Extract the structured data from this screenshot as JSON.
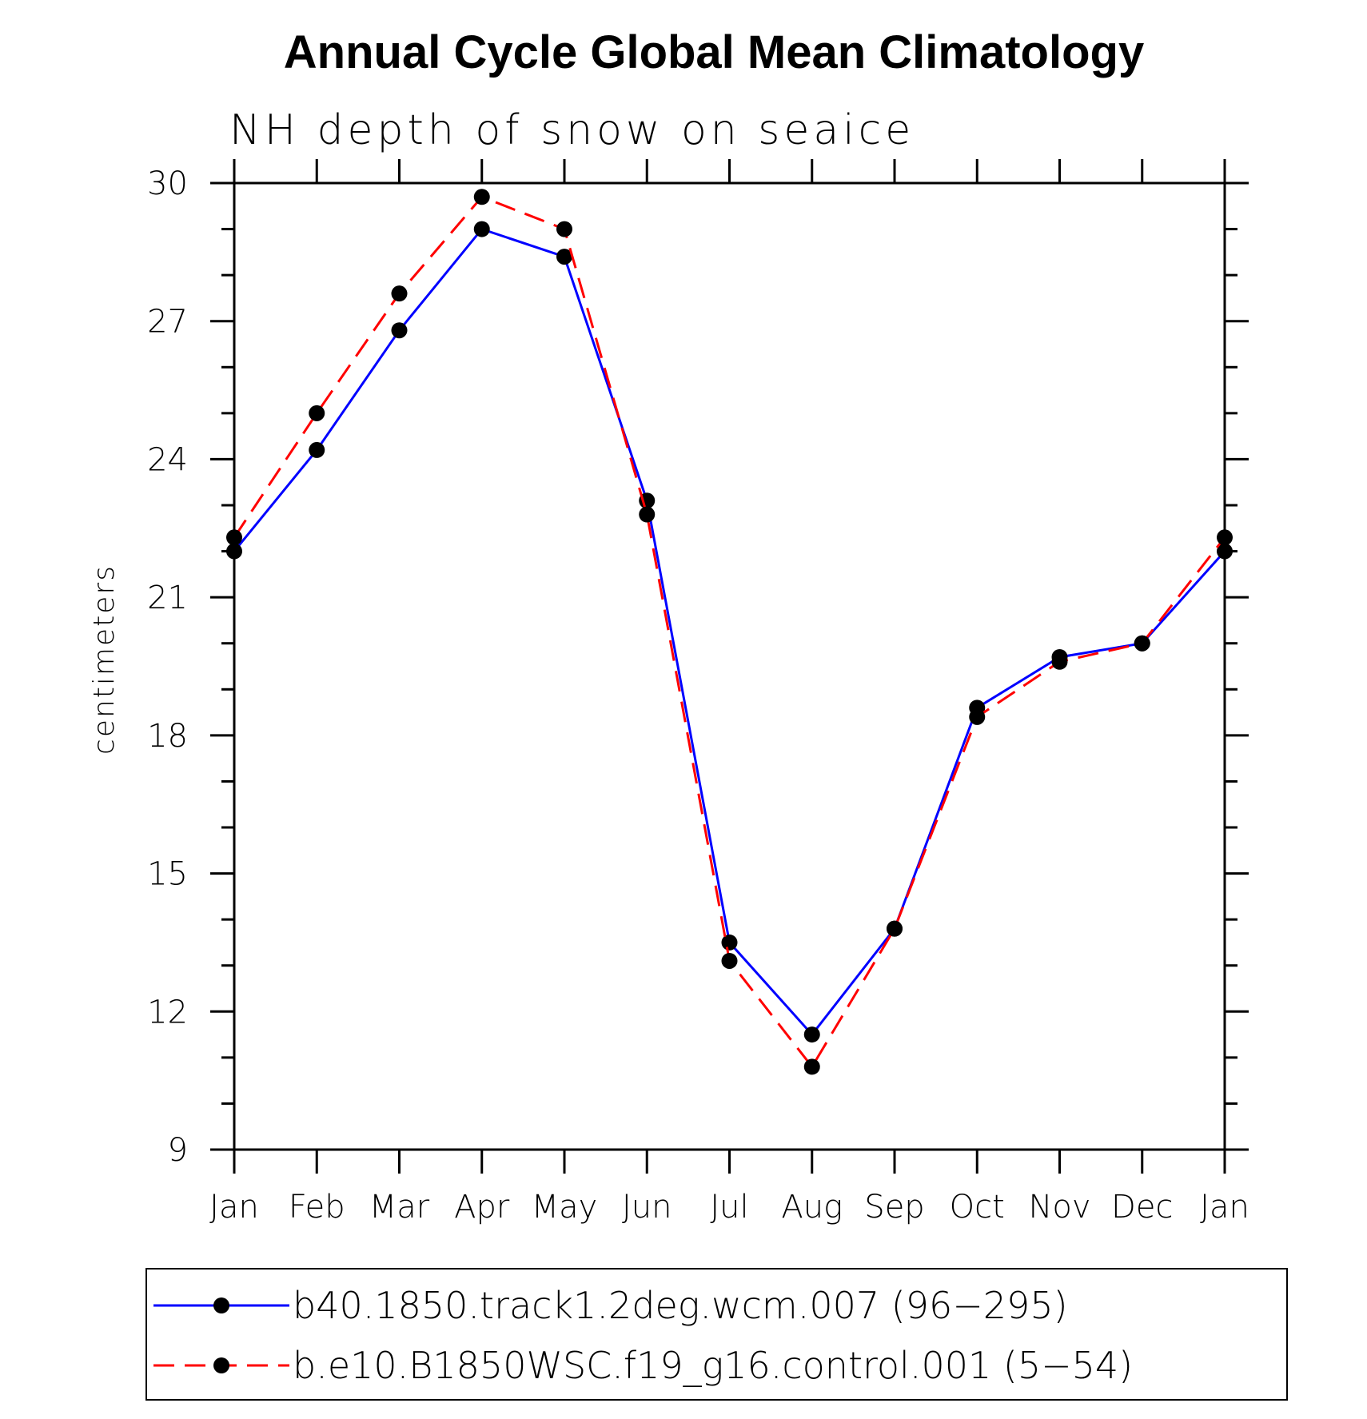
{
  "chart_data": {
    "type": "line",
    "title": "Annual Cycle Global Mean Climatology",
    "subtitle": "NH depth of snow on seaice",
    "ylabel": "centimeters",
    "xlabel": "",
    "categories": [
      "Jan",
      "Feb",
      "Mar",
      "Apr",
      "May",
      "Jun",
      "Jul",
      "Aug",
      "Sep",
      "Oct",
      "Nov",
      "Dec",
      "Jan"
    ],
    "ylim": [
      9,
      30
    ],
    "yticks": [
      9,
      12,
      15,
      18,
      21,
      24,
      27,
      30
    ],
    "series": [
      {
        "name": "b40.1850.track1.2deg.wcm.007 (96−295)",
        "color": "#0000ff",
        "dash": "solid",
        "values": [
          22.0,
          24.2,
          26.8,
          29.0,
          28.4,
          23.1,
          13.5,
          11.5,
          13.8,
          18.6,
          19.7,
          20.0,
          22.0
        ]
      },
      {
        "name": "b.e10.B1850WSC.f19_g16.control.001 (5−54)",
        "color": "#ff0000",
        "dash": "dashed",
        "values": [
          22.3,
          25.0,
          27.6,
          29.7,
          29.0,
          22.8,
          13.1,
          10.8,
          13.8,
          18.4,
          19.6,
          20.0,
          22.3
        ]
      }
    ]
  }
}
